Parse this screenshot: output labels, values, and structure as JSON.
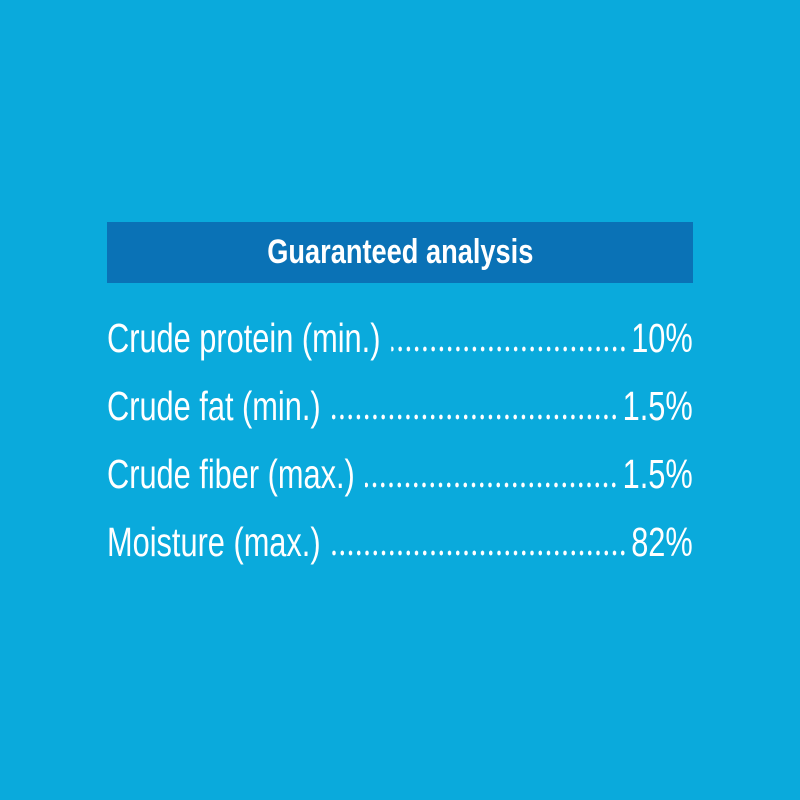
{
  "title": "Guaranteed analysis",
  "rows": [
    {
      "label": "Crude protein (min.)",
      "value": "10%"
    },
    {
      "label": "Crude fat (min.)",
      "value": "1.5%"
    },
    {
      "label": "Crude fiber (max.)",
      "value": "1.5%"
    },
    {
      "label": "Moisture (max.)",
      "value": "82%"
    }
  ]
}
